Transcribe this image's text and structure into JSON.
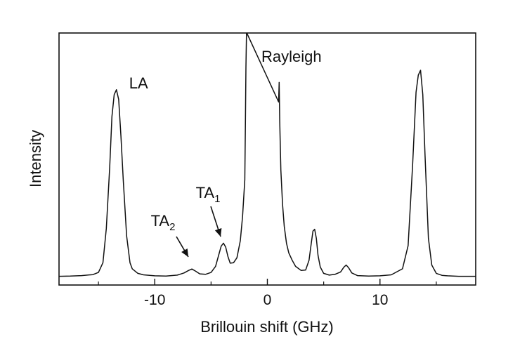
{
  "chart_data": {
    "type": "line",
    "title": "",
    "xlabel": "Brillouin shift (GHz)",
    "ylabel": "Intensity",
    "xlim": [
      -18.5,
      18.5
    ],
    "ylim": [
      0,
      1.0
    ],
    "grid": false,
    "legend": "none",
    "xticks": [
      -10,
      0,
      10
    ],
    "xtick_labels": [
      "-10",
      "0",
      "10"
    ],
    "yticks": [],
    "line_color": "#111111",
    "annotations": [
      {
        "label": "LA",
        "x": -13.4,
        "y": 0.77,
        "arrow": false
      },
      {
        "label": "Rayleigh",
        "x": 0.0,
        "y": 1.0,
        "arrow": false
      },
      {
        "label": "TA",
        "subscript": "1",
        "x": -3.8,
        "y": 0.12,
        "arrow": true
      },
      {
        "label": "TA",
        "subscript": "2",
        "x": -6.7,
        "y": 0.034,
        "arrow": true
      }
    ],
    "series": [
      {
        "x": [
          -18.5,
          -17.5,
          -16.5,
          -15.5,
          -15.0,
          -14.6,
          -14.3,
          -14.0,
          -13.8,
          -13.6,
          -13.4,
          -13.2,
          -13.0,
          -12.8,
          -12.5,
          -12.2,
          -12.0,
          -11.5,
          -11.0,
          -10.0,
          -9.0,
          -8.0,
          -7.4,
          -7.0,
          -6.7,
          -6.4,
          -6.0,
          -5.5,
          -5.0,
          -4.6,
          -4.3,
          -4.1,
          -3.9,
          -3.7,
          -3.5,
          -3.3,
          -3.0,
          -2.7,
          -2.4,
          -2.2,
          -2.0,
          -1.95,
          -1.9,
          -1.85,
          -1.8,
          1.0,
          1.05,
          1.1,
          1.2,
          1.35,
          1.5,
          1.7,
          1.9,
          2.2,
          2.5,
          3.0,
          3.4,
          3.7,
          3.9,
          4.05,
          4.2,
          4.35,
          4.5,
          4.7,
          5.0,
          5.5,
          6.0,
          6.5,
          6.8,
          7.0,
          7.2,
          7.5,
          8.0,
          9.0,
          10.0,
          11.0,
          12.0,
          12.5,
          12.9,
          13.2,
          13.4,
          13.6,
          13.8,
          14.0,
          14.3,
          14.6,
          15.0,
          15.5,
          16.0,
          17.0,
          18.5
        ],
        "y": [
          0.004,
          0.005,
          0.007,
          0.011,
          0.02,
          0.06,
          0.2,
          0.45,
          0.66,
          0.75,
          0.77,
          0.73,
          0.58,
          0.4,
          0.17,
          0.06,
          0.035,
          0.016,
          0.01,
          0.006,
          0.005,
          0.009,
          0.018,
          0.028,
          0.034,
          0.026,
          0.014,
          0.012,
          0.02,
          0.045,
          0.095,
          0.128,
          0.14,
          0.124,
          0.085,
          0.058,
          0.06,
          0.08,
          0.15,
          0.25,
          0.4,
          0.62,
          0.86,
          1.0,
          1.0,
          0.72,
          0.8,
          0.64,
          0.44,
          0.3,
          0.21,
          0.14,
          0.1,
          0.07,
          0.045,
          0.028,
          0.03,
          0.07,
          0.14,
          0.19,
          0.197,
          0.16,
          0.09,
          0.042,
          0.016,
          0.009,
          0.012,
          0.022,
          0.042,
          0.05,
          0.04,
          0.018,
          0.007,
          0.005,
          0.006,
          0.01,
          0.035,
          0.13,
          0.46,
          0.76,
          0.83,
          0.85,
          0.75,
          0.5,
          0.16,
          0.05,
          0.016,
          0.008,
          0.006,
          0.004,
          0.004
        ]
      }
    ]
  }
}
